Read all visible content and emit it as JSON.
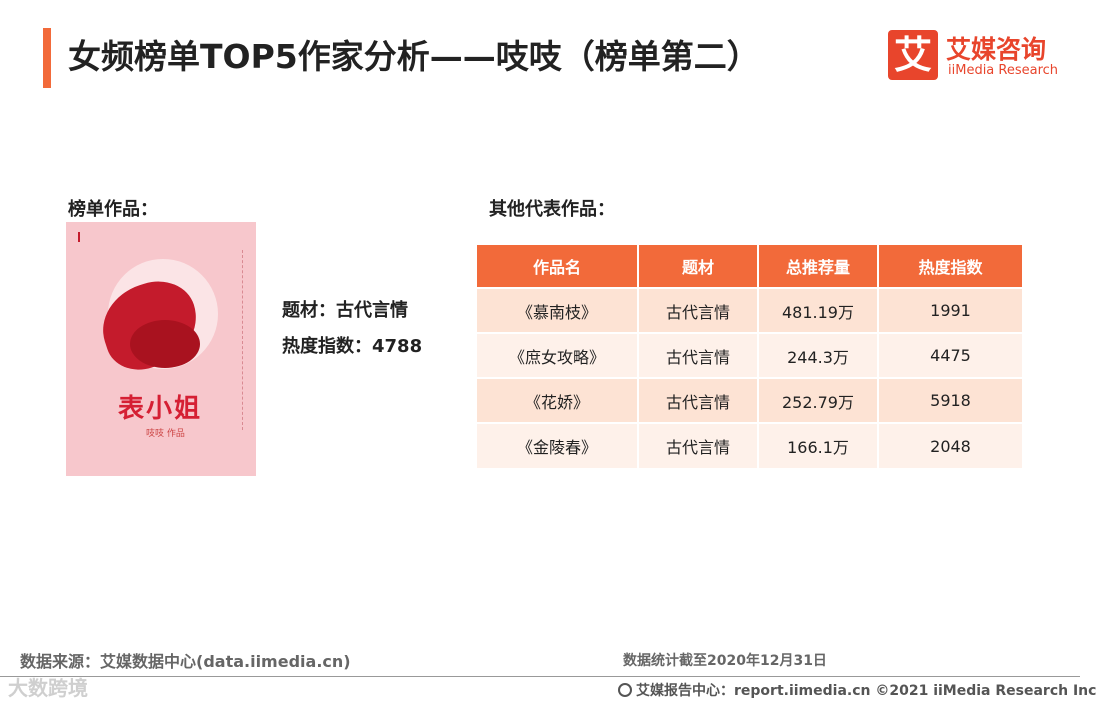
{
  "title": "女频榜单TOP5作家分析——吱吱（榜单第二）",
  "logo": {
    "mark": "艾",
    "name_cn": "艾媒咨询",
    "name_en": "iiMedia Research"
  },
  "left_section": {
    "label": "榜单作品：",
    "cover": {
      "title": "表小姐",
      "subtitle": "吱吱 作品"
    },
    "genre": "题材：古代言情",
    "heat": "热度指数：4788"
  },
  "right_section": {
    "label": "其他代表作品："
  },
  "table": {
    "headers": [
      "作品名",
      "题材",
      "总推荐量",
      "热度指数"
    ],
    "rows": [
      [
        "《慕南枝》",
        "古代言情",
        "481.19万",
        "1991"
      ],
      [
        "《庶女攻略》",
        "古代言情",
        "244.3万",
        "4475"
      ],
      [
        "《花娇》",
        "古代言情",
        "252.79万",
        "5918"
      ],
      [
        "《金陵春》",
        "古代言情",
        "166.1万",
        "2048"
      ]
    ]
  },
  "footer": {
    "source": "数据来源：艾媒数据中心(data.iimedia.cn)",
    "date": "数据统计截至2020年12月31日",
    "report": "艾媒报告中心：report.iimedia.cn   ©2021  iiMedia Research  Inc",
    "watermark": "大数跨境"
  },
  "colors": {
    "accent": "#f26a3a",
    "brand": "#e8452c",
    "row_odd": "#fde3d4",
    "row_even": "#fef1ea"
  }
}
